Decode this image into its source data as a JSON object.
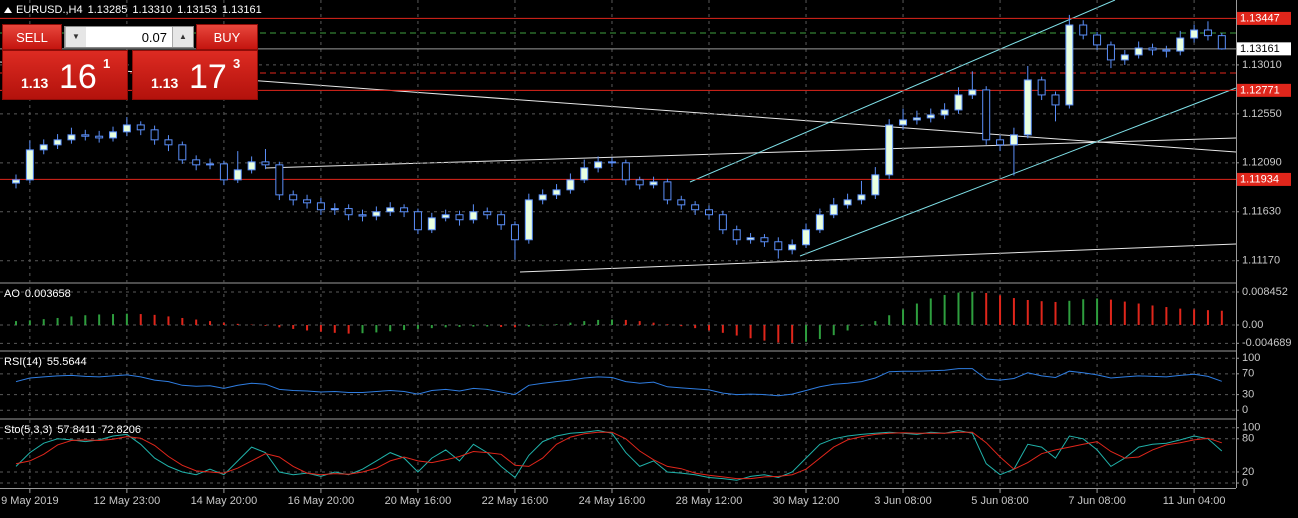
{
  "chart_data": [
    {
      "type": "candlestick",
      "title": "EURUSD.,H4",
      "ohlc_labels": [
        "1.13285",
        "1.13310",
        "1.13153",
        "1.13161"
      ],
      "categories": [
        null,
        "9 May 2019",
        null,
        null,
        null,
        null,
        null,
        null,
        "12 May 23:00",
        null,
        null,
        null,
        null,
        null,
        null,
        "14 May 20:00",
        null,
        null,
        null,
        null,
        null,
        null,
        "16 May 20:00",
        null,
        null,
        null,
        null,
        null,
        null,
        "20 May 16:00",
        null,
        null,
        null,
        null,
        null,
        null,
        "22 May 16:00",
        null,
        null,
        null,
        null,
        null,
        null,
        "24 May 16:00",
        null,
        null,
        null,
        null,
        null,
        null,
        "28 May 12:00",
        null,
        null,
        null,
        null,
        null,
        null,
        "30 May 12:00",
        null,
        null,
        null,
        null,
        null,
        null,
        "3 Jun 08:00",
        null,
        null,
        null,
        null,
        null,
        null,
        "5 Jun 08:00",
        null,
        null,
        null,
        null,
        null,
        null,
        "7 Jun 08:00",
        null,
        null,
        null,
        null,
        null,
        null,
        "11 Jun 04:00",
        null,
        null
      ],
      "open": [
        1.119,
        1.1193,
        1.12212,
        1.12259,
        1.12306,
        1.12353,
        1.1234,
        1.12324,
        1.12381,
        1.12446,
        1.124,
        1.12306,
        1.12259,
        1.12118,
        1.12071,
        1.1208,
        1.1193,
        1.12024,
        1.12099,
        1.12071,
        1.11789,
        1.11742,
        1.11714,
        1.11649,
        1.1166,
        1.11602,
        1.1159,
        1.1163,
        1.11667,
        1.1163,
        1.11461,
        1.11573,
        1.11602,
        1.11555,
        1.1163,
        1.11602,
        1.11508,
        1.11367,
        1.11742,
        1.11789,
        1.11836,
        1.1193,
        1.12043,
        1.12099,
        1.1209,
        1.1193,
        1.11883,
        1.11911,
        1.11742,
        1.11695,
        1.11649,
        1.11602,
        1.11461,
        1.11367,
        1.11386,
        1.11348,
        1.11273,
        1.1132,
        1.11461,
        1.11602,
        1.11695,
        1.11742,
        1.11789,
        1.11977,
        1.12446,
        1.12493,
        1.12512,
        1.1254,
        1.12587,
        1.12728,
        1.12775,
        1.12306,
        1.12259,
        1.12353,
        1.12869,
        1.12728,
        1.12634,
        1.13385,
        1.13291,
        1.13198,
        1.13057,
        1.13104,
        1.13169,
        1.13151,
        1.1314,
        1.13263,
        1.13338,
        1.13285
      ],
      "high": [
        1.1198,
        1.123,
        1.1231,
        1.1236,
        1.1242,
        1.124,
        1.1239,
        1.1243,
        1.1252,
        1.1248,
        1.1244,
        1.1235,
        1.1229,
        1.1216,
        1.1213,
        1.1211,
        1.122,
        1.1215,
        1.1222,
        1.121,
        1.1183,
        1.1179,
        1.1176,
        1.1171,
        1.117,
        1.1165,
        1.1168,
        1.1172,
        1.117,
        1.1166,
        1.1162,
        1.1165,
        1.1164,
        1.117,
        1.1167,
        1.1164,
        1.1154,
        1.118,
        1.1184,
        1.1189,
        1.1199,
        1.1212,
        1.1215,
        1.1214,
        1.1212,
        1.1196,
        1.1196,
        1.1194,
        1.1178,
        1.1173,
        1.1169,
        1.1164,
        1.115,
        1.1143,
        1.1142,
        1.1139,
        1.1137,
        1.1152,
        1.1166,
        1.1176,
        1.118,
        1.1192,
        1.1205,
        1.125,
        1.126,
        1.1258,
        1.126,
        1.1265,
        1.128,
        1.1295,
        1.1281,
        1.1235,
        1.1242,
        1.13,
        1.129,
        1.1276,
        1.1348,
        1.1343,
        1.1332,
        1.1323,
        1.1315,
        1.1323,
        1.1321,
        1.1319,
        1.1333,
        1.1339,
        1.1342,
        1.1331
      ],
      "low": [
        1.1185,
        1.119,
        1.1217,
        1.1222,
        1.1227,
        1.123,
        1.1228,
        1.1229,
        1.1234,
        1.1235,
        1.1226,
        1.122,
        1.1208,
        1.1202,
        1.1203,
        1.1188,
        1.119,
        1.1199,
        1.1203,
        1.1174,
        1.1169,
        1.1166,
        1.116,
        1.116,
        1.1155,
        1.1154,
        1.1155,
        1.1159,
        1.1158,
        1.1142,
        1.1143,
        1.1154,
        1.115,
        1.1152,
        1.1156,
        1.1146,
        1.1118,
        1.1133,
        1.117,
        1.1175,
        1.118,
        1.119,
        1.12,
        1.1205,
        1.1188,
        1.1184,
        1.1185,
        1.117,
        1.1165,
        1.116,
        1.1156,
        1.1142,
        1.1132,
        1.1133,
        1.113,
        1.1119,
        1.1123,
        1.1129,
        1.1143,
        1.1157,
        1.1166,
        1.117,
        1.1175,
        1.1194,
        1.124,
        1.1245,
        1.1247,
        1.125,
        1.1255,
        1.1269,
        1.1226,
        1.122,
        1.1197,
        1.1232,
        1.1268,
        1.1248,
        1.126,
        1.1325,
        1.1315,
        1.1298,
        1.1301,
        1.1307,
        1.131,
        1.1308,
        1.131,
        1.1322,
        1.1324,
        1.13153
      ],
      "close": [
        1.1193,
        1.12212,
        1.12259,
        1.12306,
        1.12353,
        1.1234,
        1.12324,
        1.12381,
        1.12446,
        1.124,
        1.12306,
        1.12259,
        1.12118,
        1.12071,
        1.1208,
        1.1193,
        1.12024,
        1.12099,
        1.12071,
        1.11789,
        1.11742,
        1.11714,
        1.11649,
        1.1166,
        1.11602,
        1.1159,
        1.1163,
        1.11667,
        1.1163,
        1.11461,
        1.11573,
        1.11602,
        1.11555,
        1.1163,
        1.11602,
        1.11508,
        1.11367,
        1.11742,
        1.11789,
        1.11836,
        1.1193,
        1.12043,
        1.12099,
        1.1209,
        1.1193,
        1.11883,
        1.11911,
        1.11742,
        1.11695,
        1.11649,
        1.11602,
        1.11461,
        1.11367,
        1.11386,
        1.11348,
        1.11273,
        1.1132,
        1.11461,
        1.11602,
        1.11695,
        1.11742,
        1.11789,
        1.11977,
        1.12446,
        1.12493,
        1.12512,
        1.1254,
        1.12587,
        1.12728,
        1.12775,
        1.12306,
        1.12259,
        1.12353,
        1.12869,
        1.12728,
        1.12634,
        1.13385,
        1.13291,
        1.13198,
        1.13057,
        1.13104,
        1.13169,
        1.13151,
        1.1314,
        1.13263,
        1.13338,
        1.13285,
        1.13161
      ],
      "up_color": "#e8ffe0",
      "down_color": "#000000",
      "outline_color": "#5b8ff9",
      "ylim": [
        1.1097,
        1.1362
      ],
      "yticks": [
        {
          "value": 1.1117,
          "label": "1.11170"
        },
        {
          "value": 1.1163,
          "label": "1.11630"
        },
        {
          "value": 1.1209,
          "label": "1.12090"
        },
        {
          "value": 1.1255,
          "label": "1.12550"
        },
        {
          "value": 1.1301,
          "label": "1.13010"
        }
      ],
      "grid": true,
      "levels": [
        {
          "value": 1.13447,
          "label": "1.13447",
          "color": "#e0261b"
        },
        {
          "value": 1.13161,
          "label": "1.13161",
          "color": "#ffffff"
        },
        {
          "value": 1.12771,
          "label": "1.12771",
          "color": "#e0261b"
        },
        {
          "value": 1.11934,
          "label": "1.11934",
          "color": "#e0261b"
        }
      ]
    },
    {
      "type": "bar",
      "title": "AO",
      "value_label": "0.003658",
      "values": [
        0.001,
        0.0012,
        0.0015,
        0.0018,
        0.0022,
        0.0025,
        0.0027,
        0.0028,
        0.0029,
        0.0028,
        0.0026,
        0.0022,
        0.0018,
        0.0014,
        0.001,
        0.0006,
        0.0003,
        0.0001,
        -0.0002,
        -0.0006,
        -0.001,
        -0.0014,
        -0.0017,
        -0.002,
        -0.0022,
        -0.0021,
        -0.0019,
        -0.0016,
        -0.0013,
        -0.001,
        -0.0008,
        -0.0006,
        -0.0005,
        -0.0004,
        -0.0004,
        -0.0005,
        -0.0006,
        -0.0004,
        -0.0001,
        0.0002,
        0.0006,
        0.001,
        0.0013,
        0.0014,
        0.0013,
        0.001,
        0.0006,
        0.0002,
        -0.0003,
        -0.0008,
        -0.0014,
        -0.002,
        -0.0027,
        -0.0034,
        -0.004,
        -0.0045,
        -0.0046,
        -0.0043,
        -0.0036,
        -0.0026,
        -0.0014,
        -0.0002,
        0.001,
        0.0025,
        0.004,
        0.0055,
        0.0068,
        0.0077,
        0.0083,
        0.0085,
        0.0082,
        0.0076,
        0.0069,
        0.0064,
        0.0061,
        0.0059,
        0.0062,
        0.0066,
        0.0068,
        0.0065,
        0.006,
        0.0055,
        0.005,
        0.0046,
        0.0042,
        0.004,
        0.0038,
        0.003658
      ],
      "up_color": "#2e9e3e",
      "down_color": "#e0261b",
      "ylim": [
        -0.0064,
        0.0105
      ],
      "yticks": [
        0.008452,
        {
          "value": 0,
          "label": "0.00"
        },
        -0.004689
      ]
    },
    {
      "type": "line",
      "title": "RSI(14)",
      "value_label": "55.5644",
      "series": [
        {
          "color": "#2f7de1",
          "values": [
            55,
            62,
            64,
            66,
            67,
            65,
            64,
            66,
            68,
            64,
            58,
            55,
            48,
            46,
            47,
            42,
            48,
            52,
            50,
            40,
            38,
            37,
            35,
            36,
            34,
            34,
            36,
            38,
            36,
            31,
            38,
            40,
            37,
            42,
            40,
            35,
            30,
            48,
            52,
            55,
            58,
            62,
            64,
            63,
            55,
            52,
            54,
            45,
            43,
            41,
            39,
            33,
            30,
            31,
            30,
            28,
            31,
            38,
            45,
            50,
            52,
            55,
            62,
            74,
            75,
            75,
            76,
            77,
            80,
            80,
            60,
            58,
            61,
            72,
            66,
            63,
            75,
            72,
            68,
            62,
            64,
            66,
            65,
            64,
            67,
            69,
            65,
            55.5644
          ]
        }
      ],
      "ylim": [
        -15,
        112
      ],
      "yticks": [
        100,
        70,
        30,
        0
      ]
    },
    {
      "type": "line",
      "title": "Sto(5,3,3)",
      "value_labels": [
        "57.8411",
        "72.8206"
      ],
      "series": [
        {
          "color": "#20b2aa",
          "values": [
            30,
            55,
            72,
            80,
            78,
            75,
            78,
            85,
            88,
            70,
            45,
            30,
            20,
            15,
            25,
            15,
            40,
            65,
            55,
            20,
            15,
            18,
            12,
            20,
            15,
            25,
            40,
            55,
            45,
            20,
            45,
            60,
            40,
            70,
            55,
            30,
            10,
            50,
            75,
            85,
            90,
            92,
            95,
            90,
            55,
            30,
            40,
            20,
            18,
            15,
            10,
            8,
            5,
            12,
            15,
            10,
            20,
            45,
            70,
            80,
            85,
            88,
            90,
            92,
            90,
            88,
            92,
            90,
            95,
            90,
            35,
            15,
            25,
            70,
            65,
            45,
            85,
            80,
            60,
            30,
            45,
            65,
            70,
            72,
            78,
            85,
            80,
            57.8411
          ]
        },
        {
          "color": "#e0261b",
          "values": [
            35,
            40,
            52,
            69,
            77,
            78,
            77,
            79,
            84,
            81,
            68,
            48,
            32,
            22,
            20,
            18,
            27,
            40,
            53,
            47,
            30,
            18,
            15,
            17,
            16,
            20,
            27,
            40,
            47,
            40,
            37,
            42,
            48,
            57,
            55,
            52,
            32,
            30,
            45,
            70,
            83,
            89,
            92,
            92,
            80,
            58,
            42,
            30,
            26,
            18,
            14,
            11,
            8,
            8,
            11,
            12,
            15,
            25,
            45,
            65,
            78,
            84,
            88,
            90,
            91,
            90,
            90,
            90,
            92,
            92,
            73,
            47,
            25,
            37,
            53,
            60,
            65,
            70,
            75,
            57,
            45,
            47,
            60,
            69,
            73,
            78,
            81,
            72.8206
          ]
        }
      ],
      "ylim": [
        -9,
        114
      ],
      "yticks": [
        100,
        80,
        20,
        0
      ]
    }
  ],
  "trade_panel": {
    "sell": "SELL",
    "lot": "0.07",
    "buy": "BUY",
    "bid": {
      "big": "1.13",
      "pips": "16",
      "point": "1"
    },
    "ask": {
      "big": "1.13",
      "pips": "17",
      "point": "3"
    }
  }
}
